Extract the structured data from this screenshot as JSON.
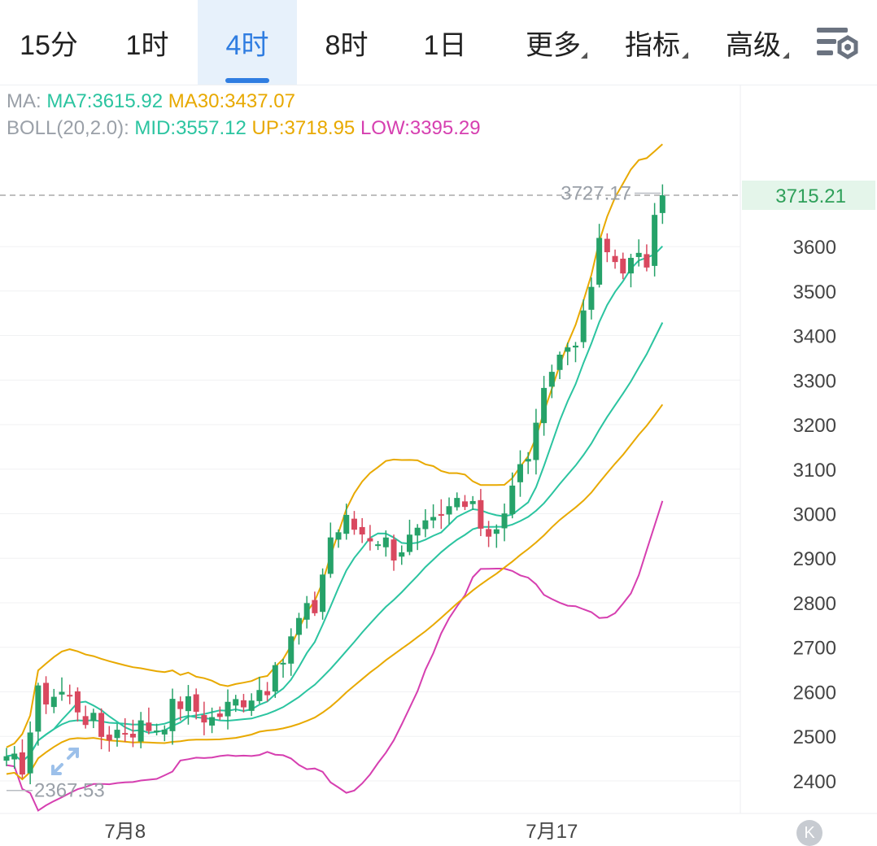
{
  "tabs": [
    {
      "label": "15分",
      "active": false,
      "dropdown": false
    },
    {
      "label": "1时",
      "active": false,
      "dropdown": false
    },
    {
      "label": "4时",
      "active": true,
      "dropdown": false
    },
    {
      "label": "8时",
      "active": false,
      "dropdown": false
    },
    {
      "label": "1日",
      "active": false,
      "dropdown": false
    },
    {
      "label": "更多",
      "active": false,
      "dropdown": true
    },
    {
      "label": "指标",
      "active": false,
      "dropdown": true
    },
    {
      "label": "高级",
      "active": false,
      "dropdown": true
    }
  ],
  "settings_icon": "chart-settings-icon",
  "legend": {
    "ma_prefix": "MA:",
    "ma7": "MA7:3615.92",
    "ma30": "MA30:3437.07",
    "boll_prefix": "BOLL(20,2.0):",
    "mid": "MID:3557.12",
    "up": "UP:3718.95",
    "low": "LOW:3395.29"
  },
  "colors": {
    "up_candle": "#26a269",
    "down_candle": "#d9485f",
    "ma7": "#2bc4a0",
    "ma30": "#e8a900",
    "boll_mid": "#2bc4a0",
    "boll_up": "#e8a900",
    "boll_low": "#d63fb0",
    "current_price": "#2fa05a",
    "active_tab": "#2f7de1"
  },
  "chart_data": {
    "type": "candlestick",
    "interval": "4时",
    "current_price": 3715.21,
    "high_marker": 3727.17,
    "low_marker": 2367.53,
    "y_ticks": [
      3600,
      3500,
      3400,
      3300,
      3200,
      3100,
      3000,
      2900,
      2800,
      2700,
      2600,
      2500,
      2400
    ],
    "x_labels": [
      {
        "label": "7月8",
        "index": 15
      },
      {
        "label": "7月17",
        "index": 69
      }
    ],
    "ylim": [
      2330,
      3815
    ],
    "num_candles": 84,
    "anchors": [
      [
        0,
        2432
      ],
      [
        2,
        2440
      ],
      [
        4,
        2590
      ],
      [
        7,
        2600
      ],
      [
        9,
        2570
      ],
      [
        12,
        2505
      ],
      [
        15,
        2520
      ],
      [
        19,
        2525
      ],
      [
        22,
        2580
      ],
      [
        26,
        2540
      ],
      [
        30,
        2590
      ],
      [
        34,
        2630
      ],
      [
        37,
        2760
      ],
      [
        39,
        2790
      ],
      [
        41,
        2950
      ],
      [
        43,
        2980
      ],
      [
        45,
        2960
      ],
      [
        47,
        2950
      ],
      [
        49,
        2920
      ],
      [
        52,
        2950
      ],
      [
        55,
        2980
      ],
      [
        57,
        3030
      ],
      [
        59,
        3000
      ],
      [
        61,
        2960
      ],
      [
        63,
        3010
      ],
      [
        65,
        3100
      ],
      [
        67,
        3180
      ],
      [
        69,
        3330
      ],
      [
        71,
        3380
      ],
      [
        73,
        3430
      ],
      [
        75,
        3600
      ],
      [
        77,
        3570
      ],
      [
        79,
        3560
      ],
      [
        81,
        3570
      ],
      [
        83,
        3715.21
      ]
    ],
    "indicators": {
      "MA7": 3615.92,
      "MA30": 3437.07,
      "BOLL": {
        "period": 20,
        "k": 2.0,
        "MID": 3557.12,
        "UP": 3718.95,
        "LOW": 3395.29
      }
    }
  },
  "expand_icon": "expand-arrows-icon",
  "scroll_end_icon": "scroll-to-latest-icon",
  "scroll_end_glyph": "K"
}
